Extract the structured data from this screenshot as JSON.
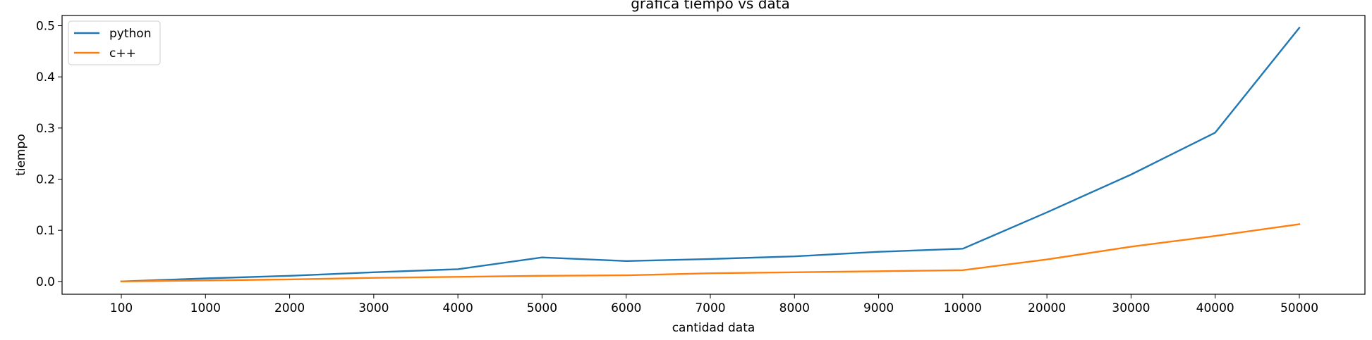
{
  "chart_data": {
    "type": "line",
    "title": "grafica tiempo vs data",
    "xlabel": "cantidad data",
    "ylabel": "tiempo",
    "categories": [
      "100",
      "1000",
      "2000",
      "3000",
      "4000",
      "5000",
      "6000",
      "7000",
      "8000",
      "9000",
      "10000",
      "20000",
      "30000",
      "40000",
      "50000"
    ],
    "ylim": [
      -0.025,
      0.52
    ],
    "yticks": [
      "0.0",
      "0.1",
      "0.2",
      "0.3",
      "0.4",
      "0.5"
    ],
    "ytick_values": [
      0.0,
      0.1,
      0.2,
      0.3,
      0.4,
      0.5
    ],
    "grid": false,
    "legend": "top-left",
    "series": [
      {
        "name": "python",
        "color": "#1f77b4",
        "values": [
          0.0,
          0.006,
          0.011,
          0.018,
          0.024,
          0.047,
          0.04,
          0.044,
          0.049,
          0.058,
          0.064,
          0.135,
          0.209,
          0.291,
          0.496
        ]
      },
      {
        "name": "c++",
        "color": "#ff7f0e",
        "values": [
          0.0,
          0.002,
          0.004,
          0.007,
          0.009,
          0.011,
          0.012,
          0.016,
          0.018,
          0.02,
          0.022,
          0.043,
          0.068,
          0.089,
          0.112
        ]
      }
    ]
  }
}
